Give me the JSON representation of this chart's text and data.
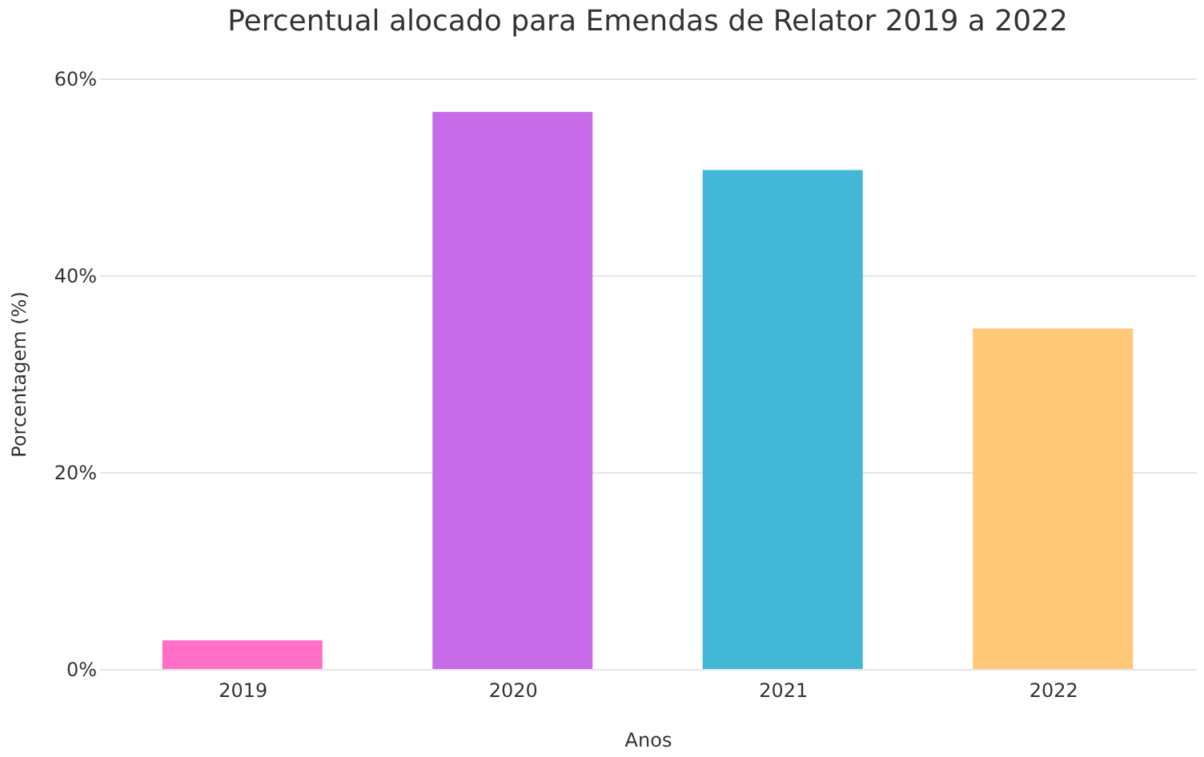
{
  "chart_data": {
    "type": "bar",
    "title": "Percentual alocado para Emendas de Relator 2019 a 2022",
    "xlabel": "Anos",
    "ylabel": "Porcentagem (%)",
    "categories": [
      "2019",
      "2020",
      "2021",
      "2022"
    ],
    "values": [
      2.9,
      56.6,
      50.7,
      34.6
    ],
    "colors": [
      "#ff6ec7",
      "#c86be8",
      "#42b8d6",
      "#ffc878"
    ],
    "ylim": [
      0,
      60
    ],
    "yticks": [
      {
        "value": 0,
        "label": "0%"
      },
      {
        "value": 20,
        "label": "20%"
      },
      {
        "value": 40,
        "label": "40%"
      },
      {
        "value": 60,
        "label": "60%"
      }
    ],
    "grid": "y",
    "legend": false
  }
}
